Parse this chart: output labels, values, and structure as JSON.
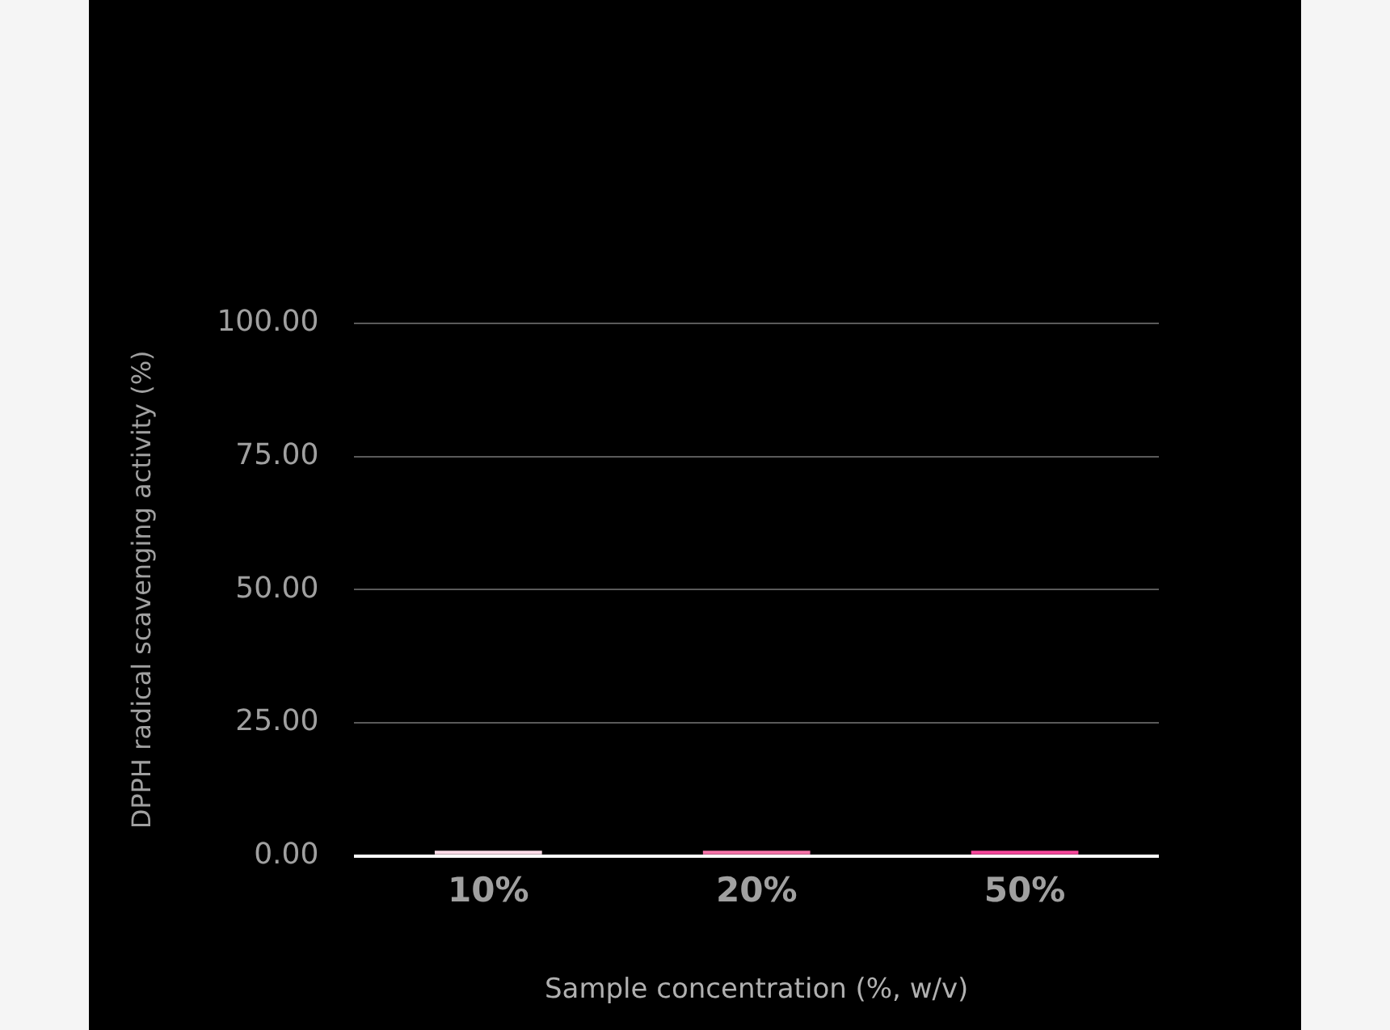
{
  "chart_data": {
    "type": "bar",
    "xlabel": "Sample concentration (%, w/v)",
    "ylabel": "DPPH radical scavenging activity (%)",
    "categories": [
      "10%",
      "20%",
      "50%"
    ],
    "values": [
      1.0,
      1.0,
      1.0
    ],
    "colors": [
      "#fbdbe8",
      "#f472a8",
      "#f4469a"
    ],
    "ylim": [
      0,
      100
    ],
    "yticks": [
      {
        "value": 0,
        "label": "0.00"
      },
      {
        "value": 25,
        "label": "25.00"
      },
      {
        "value": 50,
        "label": "50.00"
      },
      {
        "value": 75,
        "label": "75.00"
      },
      {
        "value": 100,
        "label": "100.00"
      }
    ],
    "grid": "y",
    "legend": false
  }
}
